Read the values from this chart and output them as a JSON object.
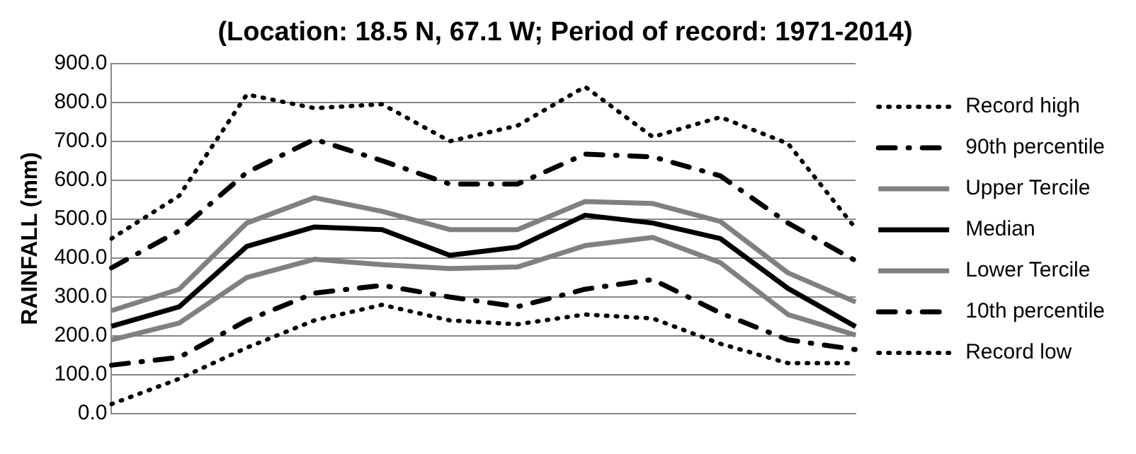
{
  "chart_data": {
    "type": "line",
    "title": "(Location: 18.5 N, 67.1 W; Period of record: 1971-2014)",
    "ylabel": "RAINFALL (mm)",
    "categories": [
      null,
      null,
      null,
      null,
      null,
      null,
      null,
      null,
      null,
      null,
      null,
      null
    ],
    "series": [
      {
        "name": "Record high",
        "color": "#000000",
        "line_style": "dotted",
        "values": [
          450,
          560,
          820,
          785,
          795,
          700,
          740,
          840,
          711,
          762,
          694,
          476
        ]
      },
      {
        "name": "90th percentile",
        "color": "#000000",
        "line_style": "dashed",
        "values": [
          375,
          470,
          620,
          705,
          650,
          590,
          590,
          667,
          660,
          611,
          490,
          393
        ]
      },
      {
        "name": "Upper Tercile",
        "color": "#808080",
        "line_style": "solid",
        "values": [
          265,
          320,
          490,
          555,
          520,
          473,
          473,
          545,
          540,
          494,
          362,
          287
        ]
      },
      {
        "name": "Median",
        "color": "#000000",
        "line_style": "solid",
        "values": [
          225,
          275,
          430,
          480,
          473,
          407,
          428,
          510,
          490,
          450,
          322,
          224
        ]
      },
      {
        "name": "Lower Tercile",
        "color": "#808080",
        "line_style": "solid",
        "values": [
          190,
          233,
          350,
          397,
          383,
          373,
          377,
          432,
          453,
          388,
          255,
          202
        ]
      },
      {
        "name": "10th percentile",
        "color": "#000000",
        "line_style": "dashed",
        "values": [
          125,
          145,
          240,
          310,
          330,
          300,
          275,
          320,
          345,
          259,
          190,
          165
        ]
      },
      {
        "name": "Record low",
        "color": "#000000",
        "line_style": "dotted",
        "values": [
          25,
          90,
          170,
          240,
          280,
          240,
          230,
          255,
          245,
          180,
          130,
          130
        ]
      }
    ],
    "ylim": [
      0,
      900
    ],
    "yticks": [
      {
        "value": 0,
        "label": "0.0"
      },
      {
        "value": 100,
        "label": "100.0"
      },
      {
        "value": 200,
        "label": "200.0"
      },
      {
        "value": 300,
        "label": "300.0"
      },
      {
        "value": 400,
        "label": "400.0"
      },
      {
        "value": 500,
        "label": "500.0"
      },
      {
        "value": 600,
        "label": "600.0"
      },
      {
        "value": 700,
        "label": "700.0"
      },
      {
        "value": 800,
        "label": "800.0"
      },
      {
        "value": 900,
        "label": "900.0"
      }
    ],
    "grid": "y",
    "legend": "right",
    "marker": "none"
  }
}
